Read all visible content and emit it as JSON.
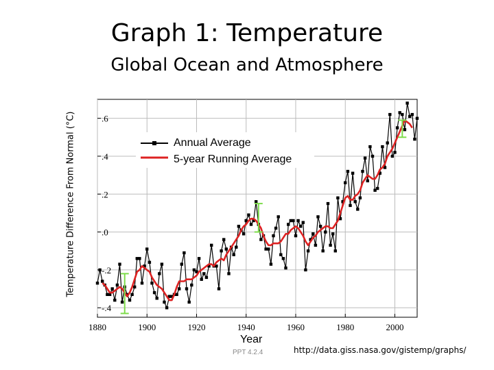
{
  "title": "Graph 1: Temperature",
  "subtitle": "Global Ocean and Atmosphere",
  "footer": {
    "slide_id": "PPT 4.2.4",
    "source_url": "http://data.giss.nasa.gov/gistemp/graphs/"
  },
  "colors": {
    "annual": "#000000",
    "running": "#dd2222",
    "error_bar": "#7ddc4a",
    "grid": "#bbbbbb"
  },
  "chart_data": {
    "type": "line",
    "title": "",
    "xlabel": "Year",
    "ylabel": "Temperature Difference From Normal (°C)",
    "xlim": [
      1880,
      2009
    ],
    "ylim": [
      -0.45,
      0.7
    ],
    "x_ticks": [
      1880,
      1900,
      1920,
      1940,
      1960,
      1980,
      2000
    ],
    "x_tick_labels": [
      "1880",
      "1900",
      "1920",
      "1940",
      "1960",
      "1980",
      "2000"
    ],
    "y_ticks": [
      -0.4,
      -0.2,
      0.0,
      0.2,
      0.4,
      0.6
    ],
    "y_tick_labels": [
      "-.4",
      "-.2",
      ".0",
      ".2",
      ".4",
      ".6"
    ],
    "grid": true,
    "legend_position": "top-left",
    "series": [
      {
        "name": "Annual Average",
        "style": "line-with-square-markers",
        "x": [
          1880,
          1881,
          1882,
          1883,
          1884,
          1885,
          1886,
          1887,
          1888,
          1889,
          1890,
          1891,
          1892,
          1893,
          1894,
          1895,
          1896,
          1897,
          1898,
          1899,
          1900,
          1901,
          1902,
          1903,
          1904,
          1905,
          1906,
          1907,
          1908,
          1909,
          1910,
          1911,
          1912,
          1913,
          1914,
          1915,
          1916,
          1917,
          1918,
          1919,
          1920,
          1921,
          1922,
          1923,
          1924,
          1925,
          1926,
          1927,
          1928,
          1929,
          1930,
          1931,
          1932,
          1933,
          1934,
          1935,
          1936,
          1937,
          1938,
          1939,
          1940,
          1941,
          1942,
          1943,
          1944,
          1945,
          1946,
          1947,
          1948,
          1949,
          1950,
          1951,
          1952,
          1953,
          1954,
          1955,
          1956,
          1957,
          1958,
          1959,
          1960,
          1961,
          1962,
          1963,
          1964,
          1965,
          1966,
          1967,
          1968,
          1969,
          1970,
          1971,
          1972,
          1973,
          1974,
          1975,
          1976,
          1977,
          1978,
          1979,
          1980,
          1981,
          1982,
          1983,
          1984,
          1985,
          1986,
          1987,
          1988,
          1989,
          1990,
          1991,
          1992,
          1993,
          1994,
          1995,
          1996,
          1997,
          1998,
          1999,
          2000,
          2001,
          2002,
          2003,
          2004,
          2005,
          2006,
          2007,
          2008,
          2009
        ],
        "values": [
          -0.27,
          -0.2,
          -0.26,
          -0.28,
          -0.33,
          -0.33,
          -0.3,
          -0.36,
          -0.28,
          -0.17,
          -0.37,
          -0.29,
          -0.33,
          -0.36,
          -0.33,
          -0.29,
          -0.14,
          -0.14,
          -0.27,
          -0.18,
          -0.09,
          -0.16,
          -0.27,
          -0.32,
          -0.35,
          -0.22,
          -0.17,
          -0.37,
          -0.4,
          -0.34,
          -0.34,
          -0.33,
          -0.33,
          -0.3,
          -0.17,
          -0.11,
          -0.3,
          -0.37,
          -0.28,
          -0.2,
          -0.21,
          -0.14,
          -0.25,
          -0.22,
          -0.24,
          -0.18,
          -0.07,
          -0.18,
          -0.18,
          -0.3,
          -0.1,
          -0.04,
          -0.09,
          -0.22,
          -0.08,
          -0.12,
          -0.08,
          0.03,
          0.01,
          -0.01,
          0.06,
          0.09,
          0.04,
          0.06,
          0.16,
          0.04,
          -0.04,
          -0.02,
          -0.09,
          -0.09,
          -0.17,
          -0.02,
          0.02,
          0.08,
          -0.12,
          -0.14,
          -0.19,
          0.04,
          0.06,
          0.06,
          -0.02,
          0.06,
          0.03,
          0.05,
          -0.2,
          -0.1,
          -0.04,
          -0.01,
          -0.07,
          0.08,
          0.03,
          -0.1,
          0.0,
          0.15,
          -0.07,
          -0.01,
          -0.1,
          0.18,
          0.07,
          0.16,
          0.26,
          0.32,
          0.14,
          0.31,
          0.16,
          0.12,
          0.18,
          0.32,
          0.39,
          0.27,
          0.45,
          0.4,
          0.22,
          0.23,
          0.31,
          0.45,
          0.34,
          0.47,
          0.62,
          0.4,
          0.42,
          0.55,
          0.63,
          0.62,
          0.54,
          0.68,
          0.61,
          0.62,
          0.49,
          0.6
        ]
      },
      {
        "name": "5-year Running Average",
        "style": "thick-line",
        "x": [
          1882,
          1883,
          1884,
          1885,
          1886,
          1887,
          1888,
          1889,
          1890,
          1891,
          1892,
          1893,
          1894,
          1895,
          1896,
          1897,
          1898,
          1899,
          1900,
          1901,
          1902,
          1903,
          1904,
          1905,
          1906,
          1907,
          1908,
          1909,
          1910,
          1911,
          1912,
          1913,
          1914,
          1915,
          1916,
          1917,
          1918,
          1919,
          1920,
          1921,
          1922,
          1923,
          1924,
          1925,
          1926,
          1927,
          1928,
          1929,
          1930,
          1931,
          1932,
          1933,
          1934,
          1935,
          1936,
          1937,
          1938,
          1939,
          1940,
          1941,
          1942,
          1943,
          1944,
          1945,
          1946,
          1947,
          1948,
          1949,
          1950,
          1951,
          1952,
          1953,
          1954,
          1955,
          1956,
          1957,
          1958,
          1959,
          1960,
          1961,
          1962,
          1963,
          1964,
          1965,
          1966,
          1967,
          1968,
          1969,
          1970,
          1971,
          1972,
          1973,
          1974,
          1975,
          1976,
          1977,
          1978,
          1979,
          1980,
          1981,
          1982,
          1983,
          1984,
          1985,
          1986,
          1987,
          1988,
          1989,
          1990,
          1991,
          1992,
          1993,
          1994,
          1995,
          1996,
          1997,
          1998,
          1999,
          2000,
          2001,
          2002,
          2003,
          2004,
          2005,
          2006,
          2007
        ],
        "values": [
          -0.27,
          -0.28,
          -0.3,
          -0.32,
          -0.32,
          -0.31,
          -0.3,
          -0.29,
          -0.3,
          -0.32,
          -0.34,
          -0.32,
          -0.29,
          -0.25,
          -0.21,
          -0.2,
          -0.18,
          -0.19,
          -0.2,
          -0.21,
          -0.24,
          -0.26,
          -0.28,
          -0.29,
          -0.3,
          -0.32,
          -0.34,
          -0.36,
          -0.36,
          -0.33,
          -0.29,
          -0.26,
          -0.26,
          -0.26,
          -0.25,
          -0.25,
          -0.25,
          -0.24,
          -0.23,
          -0.21,
          -0.2,
          -0.19,
          -0.18,
          -0.17,
          -0.17,
          -0.18,
          -0.16,
          -0.15,
          -0.14,
          -0.15,
          -0.12,
          -0.1,
          -0.08,
          -0.06,
          -0.04,
          -0.02,
          0.01,
          0.03,
          0.04,
          0.06,
          0.07,
          0.07,
          0.06,
          0.04,
          0.02,
          -0.02,
          -0.05,
          -0.07,
          -0.07,
          -0.06,
          -0.06,
          -0.06,
          -0.05,
          -0.03,
          -0.01,
          -0.01,
          0.01,
          0.02,
          0.03,
          0.02,
          0.0,
          -0.02,
          -0.05,
          -0.07,
          -0.05,
          -0.03,
          -0.02,
          0.0,
          0.01,
          0.02,
          0.03,
          0.03,
          0.02,
          0.02,
          0.04,
          0.06,
          0.1,
          0.14,
          0.18,
          0.19,
          0.17,
          0.17,
          0.19,
          0.2,
          0.22,
          0.26,
          0.28,
          0.3,
          0.29,
          0.28,
          0.28,
          0.3,
          0.33,
          0.34,
          0.36,
          0.4,
          0.42,
          0.44,
          0.47,
          0.5,
          0.53,
          0.56,
          0.59,
          0.58,
          0.57,
          0.55
        ]
      }
    ],
    "error_bars": [
      {
        "x": 1891,
        "low": -0.43,
        "high": -0.22
      },
      {
        "x": 1945,
        "low": 0.0,
        "high": 0.15
      },
      {
        "x": 2003,
        "low": 0.5,
        "high": 0.59
      }
    ]
  }
}
